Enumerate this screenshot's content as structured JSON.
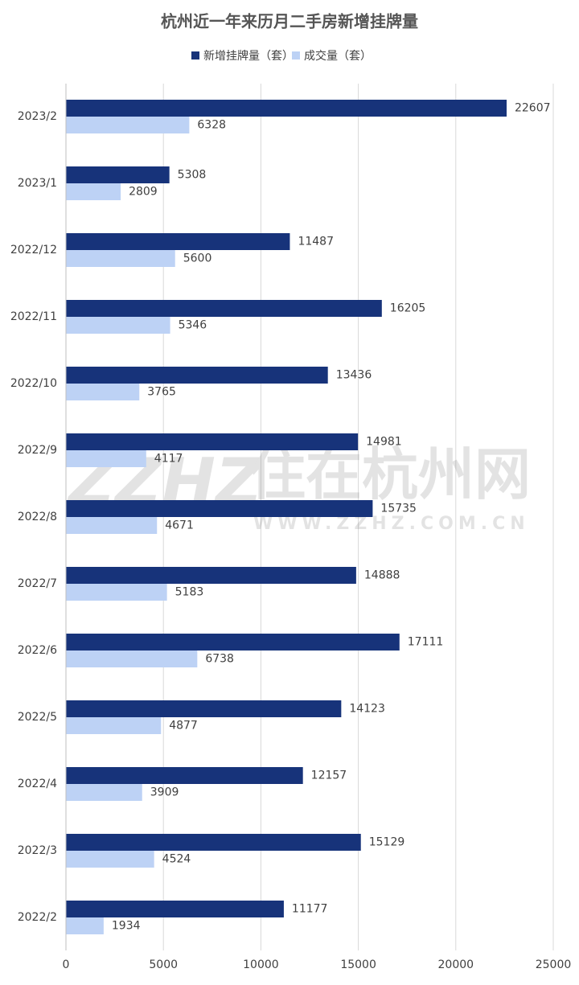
{
  "chart_data": {
    "type": "bar",
    "orientation": "horizontal",
    "title": "杭州近一年来历月二手房新增挂牌量",
    "categories": [
      "2023/2",
      "2023/1",
      "2022/12",
      "2022/11",
      "2022/10",
      "2022/9",
      "2022/8",
      "2022/7",
      "2022/6",
      "2022/5",
      "2022/4",
      "2022/3",
      "2022/2"
    ],
    "series": [
      {
        "name": "新增挂牌量（套）",
        "color": "#17337a",
        "values": [
          22607,
          5308,
          11487,
          16205,
          13436,
          14981,
          15735,
          14888,
          17111,
          14123,
          12157,
          15129,
          11177
        ]
      },
      {
        "name": "成交量（套）",
        "color": "#bdd2f5",
        "values": [
          6328,
          2809,
          5600,
          5346,
          3765,
          4117,
          4671,
          5183,
          6738,
          4877,
          3909,
          4524,
          1934
        ]
      }
    ],
    "xlim": [
      0,
      25000
    ],
    "xticks": [
      0,
      5000,
      10000,
      15000,
      20000,
      25000
    ],
    "grid": true,
    "legend": "top"
  },
  "watermark": {
    "logo": "ZZHZ",
    "text": "住在杭州网",
    "url": "WWW.ZZHZ.COM.CN"
  }
}
